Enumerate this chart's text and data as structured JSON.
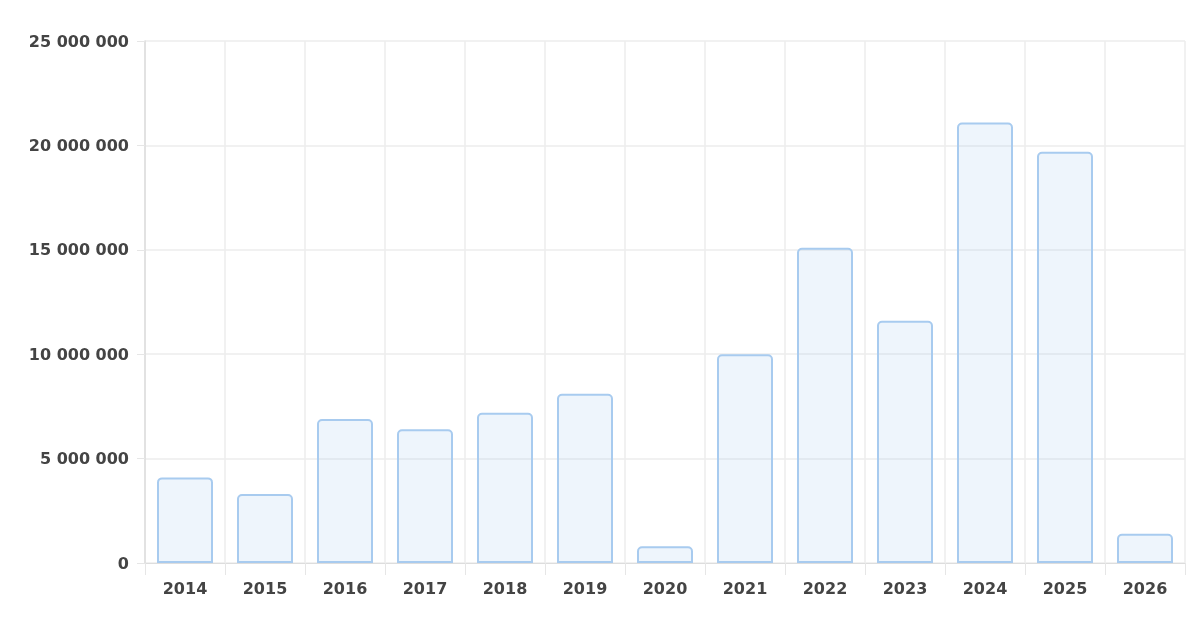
{
  "chart_data": {
    "type": "bar",
    "categories": [
      "2014",
      "2015",
      "2016",
      "2017",
      "2018",
      "2019",
      "2020",
      "2021",
      "2022",
      "2023",
      "2024",
      "2025",
      "2026"
    ],
    "values": [
      4100000,
      3300000,
      6900000,
      6400000,
      7200000,
      8100000,
      800000,
      10000000,
      15100000,
      11600000,
      21100000,
      19700000,
      1400000
    ],
    "color": "#a8cbef",
    "ylim": [
      0,
      25000000
    ],
    "yticks": [
      0,
      {
        "value": 5000000,
        "label": "5 000 000"
      },
      {
        "value": 10000000,
        "label": "10 000 000"
      },
      {
        "value": 15000000,
        "label": "15 000 000"
      },
      {
        "value": 20000000,
        "label": "20 000 000"
      },
      {
        "value": 25000000,
        "label": "25 000 000"
      }
    ],
    "grid": true
  }
}
